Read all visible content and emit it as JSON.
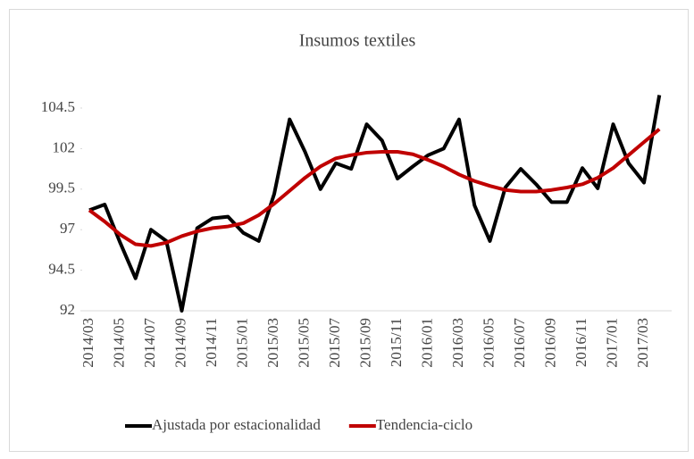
{
  "chart_data": {
    "type": "line",
    "title": "Insumos textiles",
    "categories": [
      "2014/03",
      null,
      "2014/05",
      null,
      "2014/07",
      null,
      "2014/09",
      null,
      "2014/11",
      null,
      "2015/01",
      null,
      "2015/03",
      null,
      "2015/05",
      null,
      "2015/07",
      null,
      "2015/09",
      null,
      "2015/11",
      null,
      "2016/01",
      null,
      "2016/03",
      null,
      "2016/05",
      null,
      "2016/07",
      null,
      "2016/09",
      null,
      "2016/11",
      null,
      "2017/01",
      null,
      "2017/03",
      null
    ],
    "series": [
      {
        "name": "Ajustada por estacionalidad",
        "color": "#000000",
        "values": [
          98.2,
          98.55,
          96.2,
          94.0,
          97.0,
          96.3,
          92.0,
          97.1,
          97.7,
          97.8,
          96.8,
          96.3,
          99.2,
          103.8,
          101.8,
          99.5,
          101.1,
          100.75,
          103.5,
          102.5,
          100.15,
          100.9,
          101.6,
          102.0,
          103.8,
          98.5,
          96.3,
          99.6,
          100.75,
          99.8,
          98.7,
          98.7,
          100.8,
          99.55,
          103.5,
          101.1,
          99.9,
          105.3
        ]
      },
      {
        "name": "Tendencia-ciclo",
        "color": "#c00000",
        "values": [
          98.2,
          97.5,
          96.7,
          96.1,
          96.0,
          96.2,
          96.6,
          96.9,
          97.1,
          97.2,
          97.4,
          97.9,
          98.6,
          99.4,
          100.2,
          100.9,
          101.4,
          101.6,
          101.75,
          101.8,
          101.8,
          101.65,
          101.3,
          100.9,
          100.4,
          100.0,
          99.7,
          99.45,
          99.35,
          99.35,
          99.45,
          99.6,
          99.8,
          100.2,
          100.8,
          101.6,
          102.4,
          103.2
        ]
      }
    ],
    "ylim": [
      92,
      106
    ],
    "yticks": [
      92,
      94.5,
      97,
      99.5,
      102,
      104.5
    ],
    "legend": "bottom"
  }
}
